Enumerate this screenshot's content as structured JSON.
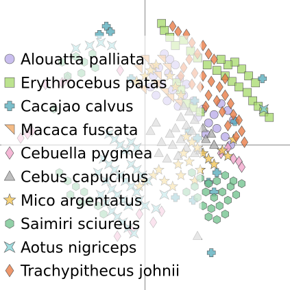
{
  "chart_data": {
    "type": "scatter",
    "title": "",
    "xlabel": "",
    "ylabel": "",
    "xlim": [
      -1.0,
      1.0
    ],
    "ylim": [
      -1.0,
      1.0
    ],
    "grid": true,
    "legend_placement": "left",
    "series": [
      {
        "name": "Alouatta palliata",
        "marker": "circle",
        "color": "#b7a8e8",
        "points": [
          [
            0.14,
            0.66
          ],
          [
            0.18,
            0.62
          ],
          [
            0.22,
            0.58
          ],
          [
            0.17,
            0.52
          ],
          [
            0.25,
            0.48
          ],
          [
            0.12,
            0.44
          ],
          [
            0.2,
            0.4
          ],
          [
            0.28,
            0.36
          ],
          [
            0.16,
            0.32
          ],
          [
            0.24,
            0.28
          ],
          [
            0.3,
            0.44
          ],
          [
            0.35,
            0.32
          ],
          [
            0.42,
            0.26
          ],
          [
            0.38,
            0.2
          ],
          [
            0.46,
            0.16
          ],
          [
            0.5,
            0.22
          ],
          [
            0.55,
            0.3
          ],
          [
            0.6,
            0.25
          ],
          [
            0.64,
            0.18
          ],
          [
            0.52,
            0.12
          ],
          [
            0.44,
            0.08
          ],
          [
            0.58,
            0.06
          ],
          [
            0.62,
            0.0
          ],
          [
            0.1,
            0.56
          ],
          [
            0.06,
            0.5
          ],
          [
            0.04,
            0.42
          ],
          [
            0.08,
            0.36
          ]
        ]
      },
      {
        "name": "Erythrocebus patas",
        "marker": "square",
        "color": "#a6d96a",
        "points": [
          [
            0.12,
            0.88
          ],
          [
            0.14,
            0.83
          ],
          [
            0.18,
            0.78
          ],
          [
            0.22,
            0.72
          ],
          [
            0.28,
            0.76
          ],
          [
            0.33,
            0.68
          ],
          [
            0.38,
            0.63
          ],
          [
            0.45,
            0.58
          ],
          [
            0.52,
            0.54
          ],
          [
            0.58,
            0.5
          ],
          [
            0.63,
            0.46
          ],
          [
            0.68,
            0.42
          ],
          [
            0.74,
            0.38
          ],
          [
            0.78,
            0.32
          ],
          [
            0.82,
            0.28
          ],
          [
            0.86,
            0.24
          ],
          [
            0.9,
            0.2
          ],
          [
            0.7,
            0.55
          ],
          [
            0.75,
            0.5
          ],
          [
            0.8,
            0.45
          ],
          [
            0.65,
            0.6
          ],
          [
            0.6,
            0.58
          ],
          [
            0.55,
            0.62
          ],
          [
            0.3,
            0.3
          ],
          [
            0.35,
            0.27
          ],
          [
            0.4,
            0.24
          ],
          [
            0.23,
            0.45
          ],
          [
            0.26,
            0.4
          ]
        ]
      },
      {
        "name": "Cacajao calvus",
        "marker": "plus",
        "color": "#4fa8b8",
        "points": [
          [
            -0.28,
            0.86
          ],
          [
            -0.33,
            0.8
          ],
          [
            -0.25,
            0.82
          ],
          [
            0.36,
            0.32
          ],
          [
            0.32,
            0.1
          ],
          [
            0.38,
            0.05
          ],
          [
            0.52,
            -0.2
          ],
          [
            0.46,
            -0.27
          ],
          [
            0.5,
            -0.34
          ],
          [
            0.35,
            -0.4
          ],
          [
            0.48,
            -0.78
          ],
          [
            0.22,
            -0.38
          ],
          [
            -0.1,
            0.48
          ],
          [
            0.85,
            0.48
          ],
          [
            0.65,
            0.17
          ]
        ]
      },
      {
        "name": "Macaca fuscata",
        "marker": "triangle-corner",
        "color": "#f0a45c",
        "points": [
          [
            0.0,
            0.62
          ],
          [
            0.05,
            0.56
          ],
          [
            0.09,
            0.5
          ],
          [
            -0.05,
            0.55
          ],
          [
            0.12,
            0.62
          ],
          [
            0.16,
            0.56
          ],
          [
            0.08,
            0.44
          ],
          [
            0.14,
            0.38
          ],
          [
            -0.02,
            0.4
          ],
          [
            0.18,
            0.34
          ],
          [
            0.24,
            0.3
          ]
        ]
      },
      {
        "name": "Cebuella pygmea",
        "marker": "diamond",
        "color": "#f2a0c8",
        "points": [
          [
            -0.9,
            0.05
          ],
          [
            -0.85,
            0.08
          ],
          [
            -0.82,
            0.1
          ],
          [
            -0.6,
            0.45
          ],
          [
            -0.56,
            0.48
          ],
          [
            -0.2,
            -0.66
          ],
          [
            -0.1,
            -0.62
          ],
          [
            0.06,
            -0.56
          ],
          [
            -0.04,
            -0.5
          ],
          [
            0.12,
            -0.48
          ],
          [
            0.64,
            -0.1
          ],
          [
            0.68,
            -0.12
          ],
          [
            0.7,
            -0.16
          ],
          [
            -0.18,
            0.54
          ],
          [
            -0.72,
            0.44
          ],
          [
            0.55,
            -0.06
          ],
          [
            0.6,
            -0.02
          ]
        ]
      },
      {
        "name": "Cebus capucinus",
        "marker": "triangle",
        "color": "#aaaaaa",
        "points": [
          [
            0.28,
            0.28
          ],
          [
            0.32,
            0.24
          ],
          [
            0.26,
            0.2
          ],
          [
            0.36,
            0.18
          ],
          [
            0.3,
            0.14
          ],
          [
            0.34,
            0.1
          ],
          [
            0.22,
            0.12
          ],
          [
            0.18,
            0.08
          ],
          [
            0.26,
            0.04
          ],
          [
            0.2,
            0.0
          ],
          [
            0.3,
            -0.02
          ],
          [
            0.36,
            -0.06
          ],
          [
            0.24,
            -0.08
          ],
          [
            0.16,
            -0.1
          ],
          [
            0.1,
            -0.06
          ],
          [
            0.12,
            0.02
          ],
          [
            0.42,
            0.12
          ],
          [
            0.44,
            0.04
          ],
          [
            0.48,
            0.08
          ],
          [
            0.4,
            -0.04
          ],
          [
            0.5,
            0.0
          ],
          [
            0.38,
            -0.66
          ],
          [
            0.08,
            0.16
          ],
          [
            0.04,
            0.1
          ]
        ]
      },
      {
        "name": "Mico argentatus",
        "marker": "star",
        "color": "#f2c14e",
        "points": [
          [
            0.0,
            0.5
          ],
          [
            0.04,
            0.54
          ],
          [
            0.08,
            0.58
          ],
          [
            -0.06,
            0.46
          ],
          [
            0.18,
            0.5
          ],
          [
            0.22,
            0.42
          ],
          [
            0.26,
            0.36
          ],
          [
            0.3,
            0.06
          ],
          [
            0.34,
            0.02
          ],
          [
            0.38,
            -0.02
          ],
          [
            0.42,
            -0.06
          ],
          [
            0.46,
            -0.1
          ],
          [
            0.5,
            -0.14
          ],
          [
            0.32,
            -0.12
          ],
          [
            0.28,
            -0.06
          ],
          [
            0.24,
            -0.14
          ],
          [
            0.1,
            -0.18
          ],
          [
            0.06,
            -0.22
          ],
          [
            0.0,
            -0.26
          ],
          [
            -0.04,
            -0.3
          ],
          [
            0.14,
            -0.26
          ],
          [
            0.2,
            -0.3
          ],
          [
            0.26,
            -0.22
          ],
          [
            0.36,
            -0.26
          ],
          [
            0.4,
            -0.18
          ],
          [
            0.56,
            -0.04
          ],
          [
            0.6,
            -0.08
          ],
          [
            0.64,
            0.04
          ]
        ]
      },
      {
        "name": "Saimiri sciureus",
        "marker": "hexagon",
        "color": "#6cc08a",
        "points": [
          [
            0.34,
            -0.2
          ],
          [
            0.4,
            -0.24
          ],
          [
            0.46,
            -0.28
          ],
          [
            0.52,
            -0.26
          ],
          [
            0.58,
            -0.22
          ],
          [
            0.44,
            -0.34
          ],
          [
            0.5,
            -0.38
          ],
          [
            0.56,
            -0.34
          ],
          [
            0.62,
            -0.3
          ],
          [
            0.38,
            -0.38
          ],
          [
            0.42,
            -0.44
          ],
          [
            0.48,
            -0.46
          ],
          [
            0.54,
            -0.44
          ],
          [
            0.6,
            -0.4
          ],
          [
            0.66,
            -0.36
          ],
          [
            0.36,
            -0.3
          ],
          [
            0.3,
            -0.34
          ],
          [
            0.64,
            -0.26
          ],
          [
            0.7,
            -0.28
          ],
          [
            0.46,
            -0.52
          ],
          [
            0.52,
            -0.54
          ],
          [
            0.58,
            -0.5
          ],
          [
            -0.6,
            0.6
          ],
          [
            -0.5,
            0.64
          ],
          [
            -0.44,
            0.6
          ],
          [
            -0.38,
            0.66
          ],
          [
            -0.56,
            0.5
          ],
          [
            -0.46,
            0.52
          ],
          [
            -0.36,
            0.56
          ],
          [
            -0.66,
            0.26
          ],
          [
            -0.62,
            -0.2
          ],
          [
            -0.56,
            -0.26
          ],
          [
            -0.5,
            -0.3
          ],
          [
            -0.44,
            -0.34
          ],
          [
            -0.4,
            -0.4
          ],
          [
            -0.54,
            -0.36
          ],
          [
            -0.46,
            -0.42
          ],
          [
            -0.34,
            -0.44
          ],
          [
            -0.3,
            -0.5
          ]
        ]
      },
      {
        "name": "Aotus nigriceps",
        "marker": "x-square",
        "color": "#7fcfd3",
        "points": [
          [
            -0.3,
            -0.1
          ],
          [
            -0.26,
            -0.14
          ],
          [
            -0.22,
            -0.18
          ],
          [
            -0.18,
            -0.22
          ],
          [
            -0.14,
            -0.26
          ],
          [
            -0.1,
            -0.3
          ],
          [
            -0.06,
            -0.34
          ],
          [
            -0.28,
            -0.26
          ],
          [
            -0.24,
            -0.32
          ],
          [
            -0.2,
            -0.36
          ],
          [
            -0.16,
            -0.4
          ],
          [
            -0.12,
            -0.44
          ],
          [
            -0.32,
            -0.36
          ],
          [
            -0.28,
            -0.42
          ],
          [
            -0.24,
            -0.48
          ],
          [
            -0.2,
            -0.52
          ],
          [
            -0.16,
            -0.56
          ],
          [
            -0.12,
            -0.6
          ],
          [
            -0.08,
            -0.64
          ],
          [
            -0.34,
            -0.2
          ],
          [
            -0.1,
            -0.14
          ],
          [
            -0.06,
            -0.18
          ],
          [
            -0.02,
            -0.22
          ],
          [
            0.02,
            -0.26
          ],
          [
            -0.04,
            -0.4
          ],
          [
            0.0,
            -0.44
          ],
          [
            -0.26,
            0.08
          ],
          [
            -0.22,
            0.04
          ],
          [
            -0.18,
            0.0
          ],
          [
            -0.14,
            -0.04
          ],
          [
            -0.1,
            0.02
          ],
          [
            -0.06,
            -0.02
          ],
          [
            -0.4,
            0.72
          ],
          [
            -0.32,
            0.74
          ],
          [
            -0.24,
            0.72
          ],
          [
            -0.5,
            0.7
          ],
          [
            0.86,
            0.26
          ],
          [
            0.08,
            -0.46
          ],
          [
            0.14,
            -0.36
          ]
        ]
      },
      {
        "name": "Trachypithecus johnii",
        "marker": "diamond",
        "color": "#e8743b",
        "points": [
          [
            0.2,
            0.86
          ],
          [
            0.24,
            0.82
          ],
          [
            0.3,
            0.8
          ],
          [
            0.34,
            0.74
          ],
          [
            0.42,
            0.72
          ],
          [
            0.46,
            0.66
          ],
          [
            0.5,
            0.62
          ],
          [
            0.38,
            0.66
          ],
          [
            0.32,
            0.62
          ],
          [
            0.28,
            0.56
          ],
          [
            0.36,
            0.52
          ],
          [
            0.42,
            0.5
          ],
          [
            0.48,
            0.46
          ],
          [
            0.54,
            0.42
          ],
          [
            0.46,
            0.36
          ],
          [
            0.52,
            0.32
          ],
          [
            0.58,
            0.36
          ],
          [
            0.62,
            0.3
          ],
          [
            0.56,
            0.24
          ],
          [
            0.64,
            0.22
          ],
          [
            0.68,
            0.18
          ],
          [
            0.6,
            0.14
          ],
          [
            0.7,
            0.1
          ],
          [
            0.66,
            0.06
          ],
          [
            0.72,
            0.02
          ],
          [
            0.4,
            0.42
          ],
          [
            0.34,
            0.44
          ],
          [
            0.26,
            0.5
          ],
          [
            0.58,
            0.48
          ],
          [
            0.44,
            0.28
          ]
        ]
      }
    ]
  }
}
